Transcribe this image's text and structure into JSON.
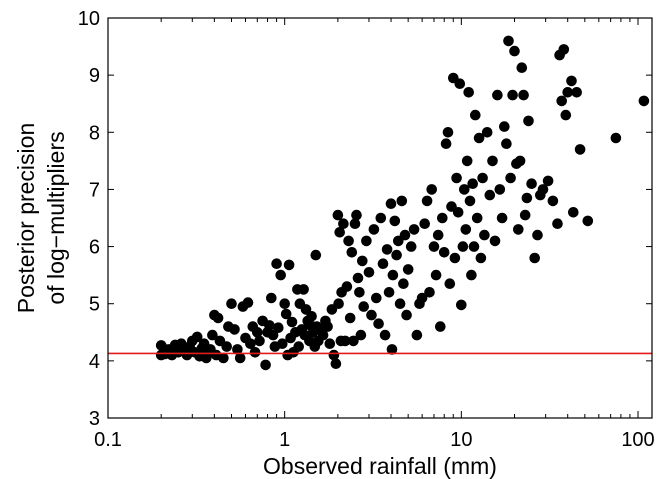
{
  "chart_data": {
    "type": "scatter",
    "title": "",
    "xlabel": "Observed rainfall (mm)",
    "ylabel_lines": [
      "Posterior precision",
      "of log−multipliers"
    ],
    "x_scale": "log",
    "xlim": [
      0.1,
      120
    ],
    "ylim": [
      3,
      10
    ],
    "x_ticks": [
      0.1,
      1,
      10,
      100
    ],
    "x_tick_labels": [
      "0.1",
      "1",
      "10",
      "100"
    ],
    "y_ticks": [
      3,
      4,
      5,
      6,
      7,
      8,
      9,
      10
    ],
    "y_tick_labels": [
      "3",
      "4",
      "5",
      "6",
      "7",
      "8",
      "9",
      "10"
    ],
    "grid": false,
    "legend": null,
    "reference_line": {
      "y": 4.13,
      "color": "#e41a1c"
    },
    "marker_color": "#000000",
    "points": [
      [
        0.2,
        4.1
      ],
      [
        0.2,
        4.27
      ],
      [
        0.21,
        4.12
      ],
      [
        0.22,
        4.2
      ],
      [
        0.23,
        4.1
      ],
      [
        0.24,
        4.28
      ],
      [
        0.25,
        4.15
      ],
      [
        0.26,
        4.3
      ],
      [
        0.27,
        4.18
      ],
      [
        0.28,
        4.1
      ],
      [
        0.29,
        4.25
      ],
      [
        0.3,
        4.35
      ],
      [
        0.31,
        4.15
      ],
      [
        0.32,
        4.42
      ],
      [
        0.33,
        4.08
      ],
      [
        0.34,
        4.22
      ],
      [
        0.35,
        4.3
      ],
      [
        0.36,
        4.05
      ],
      [
        0.37,
        4.14
      ],
      [
        0.38,
        4.2
      ],
      [
        0.39,
        4.45
      ],
      [
        0.4,
        4.8
      ],
      [
        0.41,
        4.1
      ],
      [
        0.42,
        4.75
      ],
      [
        0.43,
        4.35
      ],
      [
        0.45,
        4.05
      ],
      [
        0.47,
        4.25
      ],
      [
        0.48,
        4.6
      ],
      [
        0.5,
        5.0
      ],
      [
        0.52,
        4.55
      ],
      [
        0.54,
        4.2
      ],
      [
        0.56,
        4.05
      ],
      [
        0.58,
        4.95
      ],
      [
        0.6,
        4.4
      ],
      [
        0.62,
        5.02
      ],
      [
        0.64,
        4.3
      ],
      [
        0.66,
        4.6
      ],
      [
        0.68,
        4.15
      ],
      [
        0.7,
        4.5
      ],
      [
        0.72,
        4.35
      ],
      [
        0.75,
        4.7
      ],
      [
        0.78,
        3.93
      ],
      [
        0.8,
        4.5
      ],
      [
        0.82,
        4.62
      ],
      [
        0.84,
        5.1
      ],
      [
        0.86,
        4.45
      ],
      [
        0.88,
        4.25
      ],
      [
        0.9,
        5.7
      ],
      [
        0.92,
        4.58
      ],
      [
        0.95,
        5.5
      ],
      [
        0.97,
        4.3
      ],
      [
        1.0,
        5.0
      ],
      [
        1.02,
        4.82
      ],
      [
        1.04,
        4.1
      ],
      [
        1.06,
        5.68
      ],
      [
        1.08,
        4.4
      ],
      [
        1.1,
        4.68
      ],
      [
        1.12,
        4.15
      ],
      [
        1.15,
        4.5
      ],
      [
        1.18,
        5.25
      ],
      [
        1.2,
        4.25
      ],
      [
        1.22,
        5.0
      ],
      [
        1.25,
        4.55
      ],
      [
        1.28,
        5.25
      ],
      [
        1.3,
        4.45
      ],
      [
        1.32,
        4.9
      ],
      [
        1.35,
        4.7
      ],
      [
        1.38,
        4.35
      ],
      [
        1.4,
        4.62
      ],
      [
        1.42,
        4.78
      ],
      [
        1.45,
        4.5
      ],
      [
        1.48,
        4.25
      ],
      [
        1.5,
        5.85
      ],
      [
        1.52,
        4.6
      ],
      [
        1.55,
        4.35
      ],
      [
        1.6,
        4.55
      ],
      [
        1.65,
        4.45
      ],
      [
        1.7,
        4.7
      ],
      [
        1.75,
        4.6
      ],
      [
        1.8,
        4.3
      ],
      [
        1.85,
        4.9
      ],
      [
        1.9,
        4.1
      ],
      [
        1.95,
        3.95
      ],
      [
        2.0,
        6.55
      ],
      [
        2.02,
        5.0
      ],
      [
        2.05,
        6.25
      ],
      [
        2.08,
        4.35
      ],
      [
        2.1,
        5.2
      ],
      [
        2.15,
        6.4
      ],
      [
        2.2,
        4.35
      ],
      [
        2.25,
        5.3
      ],
      [
        2.3,
        6.1
      ],
      [
        2.35,
        4.75
      ],
      [
        2.4,
        5.9
      ],
      [
        2.45,
        4.35
      ],
      [
        2.5,
        6.4
      ],
      [
        2.55,
        6.55
      ],
      [
        2.6,
        5.45
      ],
      [
        2.65,
        5.2
      ],
      [
        2.7,
        4.45
      ],
      [
        2.75,
        5.75
      ],
      [
        2.8,
        4.95
      ],
      [
        2.9,
        6.1
      ],
      [
        3.0,
        5.55
      ],
      [
        3.1,
        4.8
      ],
      [
        3.2,
        6.3
      ],
      [
        3.3,
        5.1
      ],
      [
        3.4,
        4.65
      ],
      [
        3.5,
        6.5
      ],
      [
        3.6,
        5.7
      ],
      [
        3.7,
        4.45
      ],
      [
        3.8,
        5.95
      ],
      [
        3.9,
        5.2
      ],
      [
        4.0,
        6.75
      ],
      [
        4.05,
        4.2
      ],
      [
        4.1,
        5.5
      ],
      [
        4.2,
        6.45
      ],
      [
        4.3,
        5.85
      ],
      [
        4.4,
        6.1
      ],
      [
        4.5,
        5.0
      ],
      [
        4.6,
        6.8
      ],
      [
        4.7,
        5.35
      ],
      [
        4.8,
        6.2
      ],
      [
        4.9,
        4.8
      ],
      [
        5.0,
        5.6
      ],
      [
        5.2,
        6.0
      ],
      [
        5.4,
        6.3
      ],
      [
        5.6,
        4.45
      ],
      [
        5.8,
        5.0
      ],
      [
        6.0,
        5.1
      ],
      [
        6.2,
        6.4
      ],
      [
        6.4,
        6.8
      ],
      [
        6.6,
        5.2
      ],
      [
        6.8,
        7.0
      ],
      [
        7.0,
        6.0
      ],
      [
        7.2,
        5.5
      ],
      [
        7.4,
        6.2
      ],
      [
        7.6,
        4.6
      ],
      [
        7.8,
        6.5
      ],
      [
        8.0,
        5.9
      ],
      [
        8.2,
        7.8
      ],
      [
        8.4,
        8.0
      ],
      [
        8.6,
        5.35
      ],
      [
        8.8,
        6.7
      ],
      [
        9.0,
        8.95
      ],
      [
        9.2,
        5.8
      ],
      [
        9.4,
        7.2
      ],
      [
        9.6,
        6.6
      ],
      [
        9.8,
        8.85
      ],
      [
        10.0,
        4.98
      ],
      [
        10.2,
        6.0
      ],
      [
        10.4,
        7.0
      ],
      [
        10.6,
        6.3
      ],
      [
        10.8,
        7.5
      ],
      [
        11.0,
        8.7
      ],
      [
        11.2,
        6.8
      ],
      [
        11.4,
        5.5
      ],
      [
        11.6,
        7.1
      ],
      [
        11.8,
        6.0
      ],
      [
        12.0,
        8.3
      ],
      [
        12.3,
        6.5
      ],
      [
        12.6,
        7.9
      ],
      [
        12.9,
        5.8
      ],
      [
        13.2,
        7.2
      ],
      [
        13.5,
        6.2
      ],
      [
        14.0,
        8.0
      ],
      [
        14.5,
        6.9
      ],
      [
        15.0,
        7.5
      ],
      [
        15.5,
        6.1
      ],
      [
        16.0,
        8.65
      ],
      [
        16.5,
        7.0
      ],
      [
        17.0,
        6.5
      ],
      [
        17.5,
        8.1
      ],
      [
        18.0,
        7.8
      ],
      [
        18.5,
        9.6
      ],
      [
        19.0,
        7.2
      ],
      [
        19.5,
        8.65
      ],
      [
        20.0,
        9.42
      ],
      [
        20.5,
        7.45
      ],
      [
        21.0,
        6.3
      ],
      [
        21.5,
        7.5
      ],
      [
        22.0,
        9.13
      ],
      [
        22.5,
        8.65
      ],
      [
        23.0,
        6.55
      ],
      [
        23.5,
        6.85
      ],
      [
        24.0,
        8.2
      ],
      [
        25.0,
        7.1
      ],
      [
        26.0,
        5.8
      ],
      [
        27.0,
        6.2
      ],
      [
        28.0,
        6.9
      ],
      [
        29.0,
        7.0
      ],
      [
        31.0,
        7.15
      ],
      [
        33.0,
        6.8
      ],
      [
        35.0,
        6.4
      ],
      [
        36.0,
        9.35
      ],
      [
        37.0,
        8.55
      ],
      [
        38.0,
        9.45
      ],
      [
        39.0,
        8.3
      ],
      [
        40.0,
        8.7
      ],
      [
        42.0,
        8.9
      ],
      [
        43.0,
        6.6
      ],
      [
        45.0,
        8.7
      ],
      [
        47.0,
        7.7
      ],
      [
        52.0,
        6.45
      ],
      [
        75.0,
        7.9
      ],
      [
        108.0,
        8.55
      ]
    ]
  }
}
